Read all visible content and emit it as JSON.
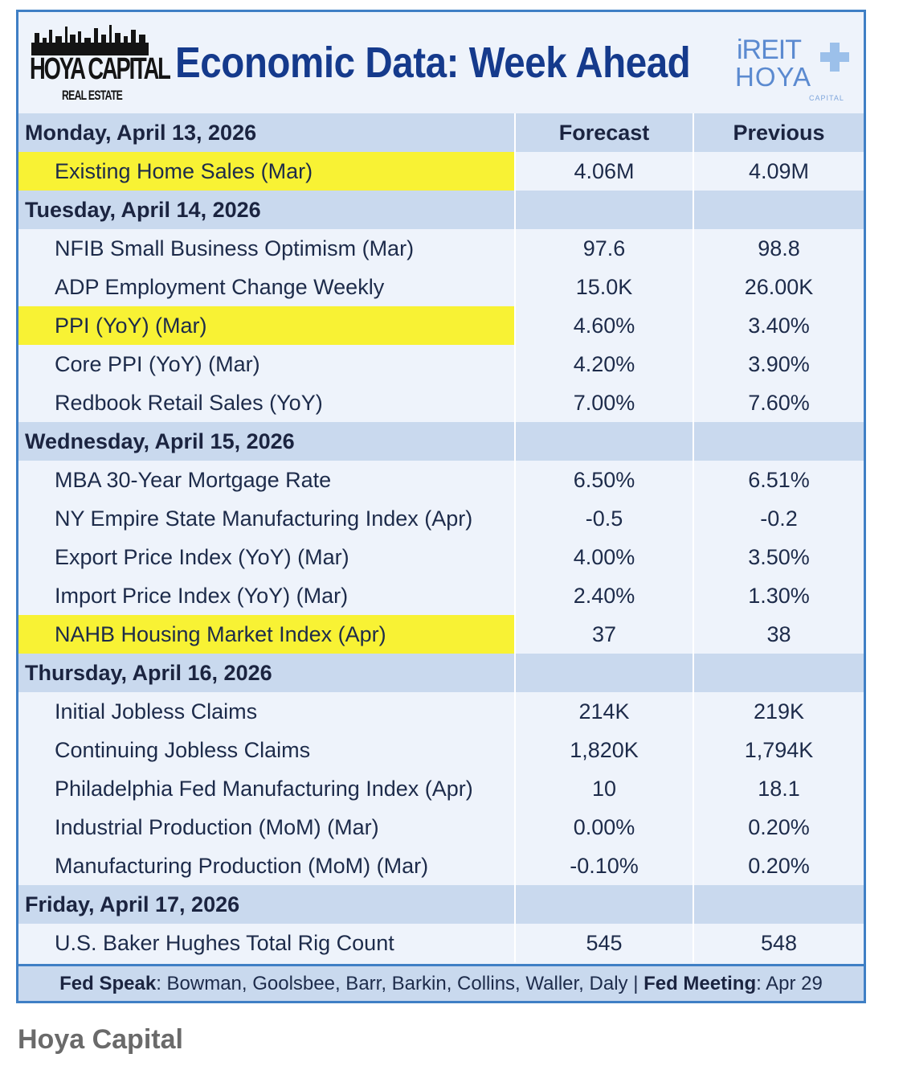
{
  "header": {
    "brand_left": "HOYA CAPITAL",
    "brand_left_sub": "REAL ESTATE",
    "title": "Economic Data: Week Ahead",
    "brand_right_top": "iREIT",
    "brand_right_bottom": "HOYA",
    "brand_right_sub": "CAPITAL"
  },
  "columns": {
    "forecast": "Forecast",
    "previous": "Previous"
  },
  "days": [
    {
      "day": "Monday, April 13, 2026",
      "rows": [
        {
          "name": "Existing Home Sales (Mar)",
          "forecast": "4.06M",
          "previous": "4.09M",
          "highlight": true
        }
      ]
    },
    {
      "day": "Tuesday, April 14, 2026",
      "rows": [
        {
          "name": "NFIB Small Business Optimism (Mar)",
          "forecast": "97.6",
          "previous": "98.8",
          "highlight": false
        },
        {
          "name": "ADP Employment Change Weekly",
          "forecast": "15.0K",
          "previous": "26.00K",
          "highlight": false
        },
        {
          "name": "PPI (YoY) (Mar)",
          "forecast": "4.60%",
          "previous": "3.40%",
          "highlight": true
        },
        {
          "name": "Core PPI (YoY) (Mar)",
          "forecast": "4.20%",
          "previous": "3.90%",
          "highlight": false
        },
        {
          "name": "Redbook Retail Sales (YoY)",
          "forecast": "7.00%",
          "previous": "7.60%",
          "highlight": false
        }
      ]
    },
    {
      "day": "Wednesday, April 15, 2026",
      "rows": [
        {
          "name": "MBA 30-Year Mortgage Rate",
          "forecast": "6.50%",
          "previous": "6.51%",
          "highlight": false
        },
        {
          "name": "NY Empire State Manufacturing Index (Apr)",
          "forecast": "-0.5",
          "previous": "-0.2",
          "highlight": false
        },
        {
          "name": "Export Price Index (YoY) (Mar)",
          "forecast": "4.00%",
          "previous": "3.50%",
          "highlight": false
        },
        {
          "name": "Import Price Index (YoY) (Mar)",
          "forecast": "2.40%",
          "previous": "1.30%",
          "highlight": false
        },
        {
          "name": "NAHB Housing Market Index (Apr)",
          "forecast": "37",
          "previous": "38",
          "highlight": true
        }
      ]
    },
    {
      "day": "Thursday, April 16, 2026",
      "rows": [
        {
          "name": "Initial Jobless Claims",
          "forecast": "214K",
          "previous": "219K",
          "highlight": false
        },
        {
          "name": "Continuing Jobless Claims",
          "forecast": "1,820K",
          "previous": "1,794K",
          "highlight": false
        },
        {
          "name": "Philadelphia Fed Manufacturing Index (Apr)",
          "forecast": "10",
          "previous": "18.1",
          "highlight": false
        },
        {
          "name": "Industrial Production (MoM) (Mar)",
          "forecast": "0.00%",
          "previous": "0.20%",
          "highlight": false
        },
        {
          "name": "Manufacturing Production (MoM) (Mar)",
          "forecast": "-0.10%",
          "previous": "0.20%",
          "highlight": false
        }
      ]
    },
    {
      "day": "Friday, April 17, 2026",
      "rows": [
        {
          "name": "U.S. Baker Hughes Total Rig Count",
          "forecast": "545",
          "previous": "548",
          "highlight": false
        }
      ]
    }
  ],
  "footer": {
    "fed_speak_label": "Fed Speak",
    "fed_speak_value": ": Bowman, Goolsbee, Barr, Barkin, Collins, Waller, Daly | ",
    "fed_meeting_label": "Fed Meeting",
    "fed_meeting_value": ": Apr 29"
  },
  "caption": "Hoya Capital",
  "colors": {
    "border": "#3f7fc5",
    "day_row": "#c9d9ee",
    "item_row": "#eef3fb",
    "highlight": "#f8f234",
    "title": "#153a8c"
  }
}
